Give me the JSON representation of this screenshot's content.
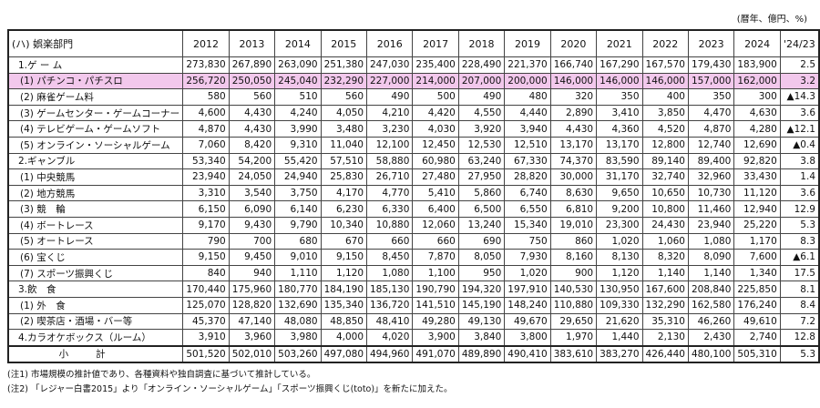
{
  "unit": "(暦年、億円、%)",
  "table": {
    "header": [
      "(ハ) 娯楽部門",
      "2012",
      "2013",
      "2014",
      "2015",
      "2016",
      "2017",
      "2018",
      "2019",
      "2020",
      "2021",
      "2022",
      "2023",
      "2024",
      "'24/23"
    ],
    "rows": [
      {
        "label": "1.ゲ ー ム",
        "level": "main",
        "values": [
          "273,830",
          "267,890",
          "263,090",
          "251,380",
          "247,030",
          "235,400",
          "228,490",
          "221,370",
          "166,740",
          "167,290",
          "167,570",
          "179,430",
          "183,900"
        ],
        "change": "2.5"
      },
      {
        "label": "(1) パチンコ・パチスロ",
        "level": "sub",
        "values": [
          "256,720",
          "250,050",
          "245,040",
          "232,290",
          "227,000",
          "214,000",
          "207,000",
          "200,000",
          "146,000",
          "146,000",
          "146,000",
          "157,000",
          "162,000"
        ],
        "change": "3.2"
      },
      {
        "label": "(2) 麻雀ゲーム料",
        "level": "sub",
        "values": [
          "580",
          "560",
          "510",
          "560",
          "490",
          "500",
          "490",
          "480",
          "320",
          "350",
          "400",
          "350",
          "300"
        ],
        "change": "▲14.3"
      },
      {
        "label": "(3) ゲームセンター・ゲームコーナー",
        "level": "sub",
        "values": [
          "4,600",
          "4,430",
          "4,240",
          "4,050",
          "4,210",
          "4,420",
          "4,550",
          "4,440",
          "2,890",
          "3,410",
          "3,850",
          "4,470",
          "4,630"
        ],
        "change": "3.6"
      },
      {
        "label": "(4) テレビゲーム・ゲームソフト",
        "level": "sub",
        "values": [
          "4,870",
          "4,430",
          "3,990",
          "3,480",
          "3,230",
          "4,030",
          "3,920",
          "3,940",
          "4,430",
          "4,360",
          "4,520",
          "4,870",
          "4,280"
        ],
        "change": "▲12.1"
      },
      {
        "label": "(5) オンライン・ソーシャルゲーム",
        "level": "sub",
        "values": [
          "7,060",
          "8,420",
          "9,310",
          "11,040",
          "12,100",
          "12,450",
          "12,530",
          "12,510",
          "13,170",
          "13,170",
          "12,800",
          "12,740",
          "12,690"
        ],
        "change": "▲0.4"
      },
      {
        "label": "2.ギャンブル",
        "level": "main",
        "values": [
          "53,340",
          "54,200",
          "55,420",
          "57,510",
          "58,880",
          "60,980",
          "63,240",
          "67,330",
          "74,370",
          "83,590",
          "89,140",
          "89,400",
          "92,820"
        ],
        "change": "3.8"
      },
      {
        "label": "(1) 中央競馬",
        "level": "sub",
        "values": [
          "23,940",
          "24,050",
          "24,940",
          "25,830",
          "26,710",
          "27,480",
          "27,950",
          "28,820",
          "30,000",
          "31,170",
          "32,740",
          "32,960",
          "33,430"
        ],
        "change": "1.4"
      },
      {
        "label": "(2) 地方競馬",
        "level": "sub",
        "values": [
          "3,310",
          "3,540",
          "3,750",
          "4,170",
          "4,770",
          "5,410",
          "5,860",
          "6,740",
          "8,630",
          "9,650",
          "10,650",
          "10,730",
          "11,120"
        ],
        "change": "3.6"
      },
      {
        "label": "(3) 競　輪",
        "level": "sub",
        "values": [
          "6,150",
          "6,090",
          "6,140",
          "6,230",
          "6,330",
          "6,400",
          "6,500",
          "6,550",
          "6,810",
          "9,200",
          "10,800",
          "11,460",
          "12,940"
        ],
        "change": "12.9"
      },
      {
        "label": "(4) ボートレース",
        "level": "sub",
        "values": [
          "9,170",
          "9,430",
          "9,790",
          "10,340",
          "10,880",
          "12,060",
          "13,240",
          "15,340",
          "19,010",
          "23,300",
          "24,430",
          "23,940",
          "25,220"
        ],
        "change": "5.3"
      },
      {
        "label": "(5) オートレース",
        "level": "sub",
        "values": [
          "790",
          "700",
          "680",
          "670",
          "660",
          "660",
          "690",
          "750",
          "860",
          "1,020",
          "1,060",
          "1,080",
          "1,170"
        ],
        "change": "8.3"
      },
      {
        "label": "(6) 宝くじ",
        "level": "sub",
        "values": [
          "9,150",
          "9,450",
          "9,010",
          "9,150",
          "8,450",
          "7,870",
          "8,050",
          "7,930",
          "8,160",
          "8,130",
          "8,320",
          "8,090",
          "7,600"
        ],
        "change": "▲6.1"
      },
      {
        "label": "(7) スポーツ振興くじ",
        "level": "sub",
        "values": [
          "840",
          "940",
          "1,110",
          "1,120",
          "1,080",
          "1,100",
          "950",
          "1,020",
          "900",
          "1,120",
          "1,140",
          "1,140",
          "1,340"
        ],
        "change": "17.5"
      },
      {
        "label": "3.飲　食",
        "level": "main",
        "values": [
          "170,440",
          "175,960",
          "180,770",
          "184,190",
          "185,130",
          "190,790",
          "194,320",
          "197,910",
          "140,530",
          "130,950",
          "167,600",
          "208,840",
          "225,850"
        ],
        "change": "8.1"
      },
      {
        "label": "(1) 外　食",
        "level": "sub",
        "values": [
          "125,070",
          "128,820",
          "132,690",
          "135,340",
          "136,720",
          "141,510",
          "145,190",
          "148,240",
          "110,880",
          "109,330",
          "132,290",
          "162,580",
          "176,240"
        ],
        "change": "8.4"
      },
      {
        "label": "(2) 喫茶店・酒場・バー等",
        "level": "sub",
        "values": [
          "45,370",
          "47,140",
          "48,080",
          "48,850",
          "48,410",
          "49,280",
          "49,130",
          "49,670",
          "29,650",
          "21,620",
          "35,310",
          "46,260",
          "49,610"
        ],
        "change": "7.2"
      },
      {
        "label": "4.カラオケボックス（ルーム）",
        "level": "main",
        "values": [
          "3,910",
          "3,960",
          "3,980",
          "4,000",
          "4,020",
          "3,900",
          "3,840",
          "3,800",
          "1,970",
          "1,440",
          "2,130",
          "2,430",
          "2,740"
        ],
        "change": "12.8"
      },
      {
        "label": "小計",
        "level": "total",
        "values": [
          "501,520",
          "502,010",
          "503,260",
          "497,080",
          "494,960",
          "491,070",
          "489,890",
          "490,410",
          "383,610",
          "383,270",
          "426,440",
          "480,100",
          "505,310"
        ],
        "change": "5.3"
      }
    ]
  },
  "notes": [
    "(注1) 市場規模の推計値であり、各種資料や独自調査に基づいて推計している。",
    "(注2) 「レジャー白書2015」より「オンライン・ソーシャルゲーム」「スポーツ振興くじ(toto)」を新たに加えた。"
  ]
}
